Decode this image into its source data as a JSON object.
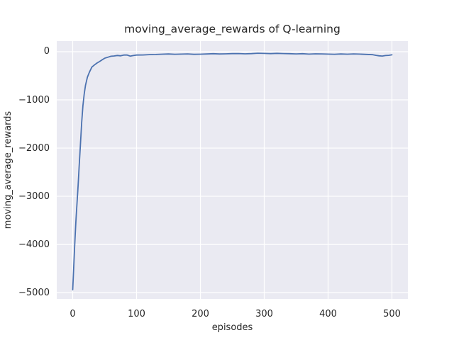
{
  "chart_data": {
    "type": "line",
    "title": "moving_average_rewards of Q-learning",
    "xlabel": "episodes",
    "ylabel": "moving_average_rewards",
    "xlim": [
      -25,
      525
    ],
    "ylim": [
      -5130,
      220
    ],
    "xticks": [
      0,
      100,
      200,
      300,
      400,
      500
    ],
    "yticks": [
      0,
      -1000,
      -2000,
      -3000,
      -4000,
      -5000
    ],
    "grid": true,
    "legend": "none",
    "style": {
      "plot_bg": "#eaeaf2",
      "grid_color": "#ffffff",
      "line_color": "#4c72b0",
      "line_width": 1.8,
      "text_color": "#262626"
    },
    "series": [
      {
        "name": "moving_average_rewards",
        "x": [
          0,
          1,
          2,
          3,
          4,
          5,
          6,
          7,
          8,
          9,
          10,
          12,
          14,
          16,
          18,
          20,
          23,
          26,
          30,
          34,
          38,
          42,
          46,
          50,
          55,
          60,
          65,
          70,
          75,
          80,
          85,
          90,
          95,
          100,
          110,
          120,
          130,
          140,
          150,
          160,
          170,
          180,
          190,
          200,
          210,
          220,
          230,
          240,
          250,
          260,
          270,
          280,
          290,
          300,
          310,
          320,
          330,
          340,
          350,
          360,
          370,
          380,
          390,
          400,
          410,
          420,
          430,
          440,
          450,
          460,
          470,
          475,
          480,
          485,
          490,
          495,
          500
        ],
        "y": [
          -4940,
          -4650,
          -4350,
          -4050,
          -3780,
          -3520,
          -3300,
          -3090,
          -2880,
          -2650,
          -2400,
          -1950,
          -1480,
          -1120,
          -880,
          -700,
          -530,
          -430,
          -320,
          -275,
          -235,
          -205,
          -170,
          -135,
          -115,
          -95,
          -88,
          -78,
          -85,
          -70,
          -68,
          -92,
          -80,
          -70,
          -68,
          -60,
          -58,
          -52,
          -48,
          -54,
          -50,
          -46,
          -55,
          -52,
          -47,
          -42,
          -48,
          -45,
          -40,
          -38,
          -44,
          -40,
          -32,
          -36,
          -40,
          -34,
          -38,
          -42,
          -46,
          -42,
          -50,
          -44,
          -46,
          -50,
          -54,
          -48,
          -52,
          -46,
          -50,
          -56,
          -62,
          -75,
          -85,
          -90,
          -80,
          -75,
          -65
        ]
      }
    ]
  }
}
